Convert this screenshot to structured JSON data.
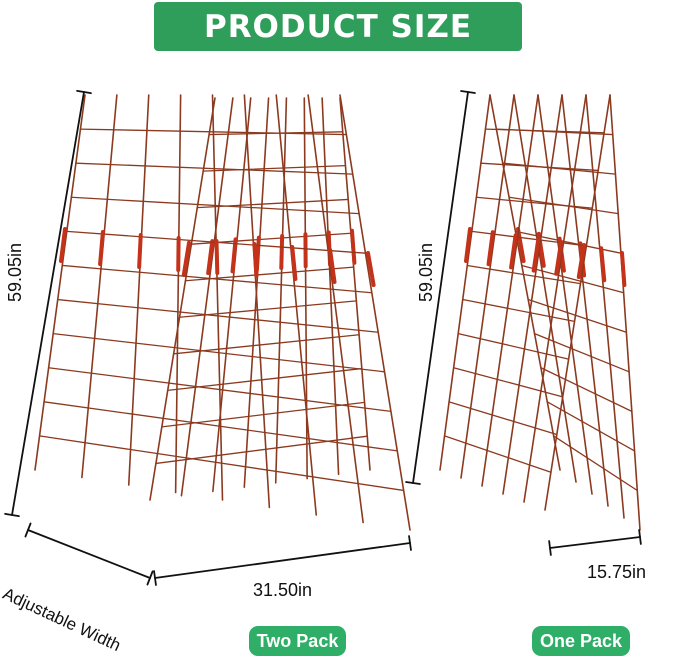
{
  "banner": {
    "title": "PRODUCT SIZE",
    "color": "#2f9e5b"
  },
  "two_pack": {
    "height_label": "59.05in",
    "width_label": "31.50in",
    "adjustable_label": "Adjustable Width",
    "button": "Two Pack"
  },
  "one_pack": {
    "height_label": "59.05in",
    "width_label": "15.75in",
    "button": "One Pack"
  },
  "colors": {
    "frame": "#8b3a1f",
    "clip": "#c4321a",
    "button": "#2fae67"
  }
}
